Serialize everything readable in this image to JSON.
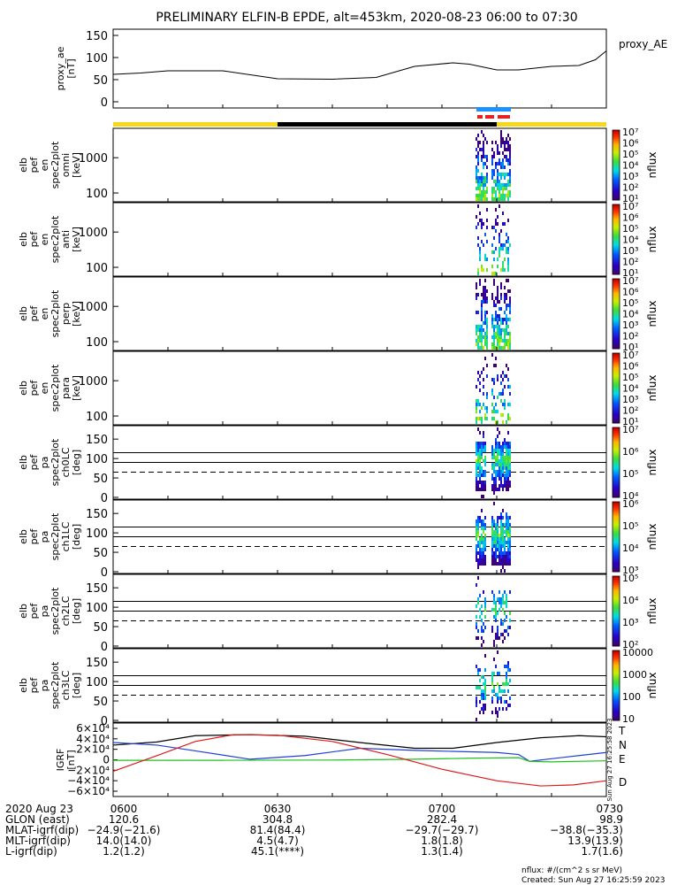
{
  "title": "PRELIMINARY ELFIN-B EPDE, alt=453km, 2020-08-23 06:00 to 07:30",
  "colors": {
    "bar_yellow": "#f8d81c",
    "bar_black": "#000000",
    "bar_blue": "#1e90ff",
    "bar_red": "#e82020",
    "trace_T": "#000000",
    "trace_N": "#1f3fd8",
    "trace_E": "#20c020",
    "trace_D": "#e01a1a"
  },
  "chart_data": {
    "type": "heatmap",
    "time_range": [
      "06:00",
      "07:30"
    ],
    "panels": [
      {
        "id": "proxy_ae",
        "type": "line",
        "ylabel_lines": [
          "proxy_ae",
          "[nT]"
        ],
        "right_label": "proxy_AE",
        "ylim": [
          0,
          150
        ],
        "yticks": [
          "150",
          "100",
          "50",
          "0"
        ],
        "x_minutes": [
          0,
          5,
          10,
          20,
          30,
          40,
          48,
          55,
          62,
          65,
          70,
          74,
          80,
          85,
          88,
          90
        ],
        "y": [
          62,
          65,
          70,
          70,
          52,
          51,
          55,
          80,
          88,
          85,
          72,
          72,
          80,
          82,
          95,
          115
        ]
      },
      {
        "id": "omni",
        "ylabel_lines": [
          "elb",
          "pef",
          "en",
          "spec2plot",
          "omni",
          "[keV]"
        ],
        "yticks": [
          "1000",
          "100"
        ],
        "cbar_label": "nflux",
        "cbar_ticks": [
          "10⁷",
          "10⁶",
          "10⁵",
          "10⁴",
          "10³",
          "10²",
          "10¹"
        ]
      },
      {
        "id": "anti",
        "ylabel_lines": [
          "elb",
          "pef",
          "en",
          "spec2plot",
          "anti",
          "[keV]"
        ],
        "yticks": [
          "1000",
          "100"
        ],
        "cbar_label": "nflux",
        "cbar_ticks": [
          "10⁷",
          "10⁶",
          "10⁵",
          "10⁴",
          "10³",
          "10²",
          "10¹"
        ]
      },
      {
        "id": "perp",
        "ylabel_lines": [
          "elb",
          "pef",
          "en",
          "spec2plot",
          "perp",
          "[keV]"
        ],
        "yticks": [
          "1000",
          "100"
        ],
        "cbar_label": "nflux",
        "cbar_ticks": [
          "10⁷",
          "10⁶",
          "10⁵",
          "10⁴",
          "10³",
          "10²",
          "10¹"
        ]
      },
      {
        "id": "para",
        "ylabel_lines": [
          "elb",
          "pef",
          "en",
          "spec2plot",
          "para",
          "[keV]"
        ],
        "yticks": [
          "1000",
          "100"
        ],
        "cbar_label": "nflux",
        "cbar_ticks": [
          "10⁷",
          "10⁶",
          "10⁵",
          "10⁴",
          "10³",
          "10²",
          "10¹"
        ]
      },
      {
        "id": "ch0LC",
        "ylabel_lines": [
          "elb",
          "pef",
          "pa",
          "spec2plot",
          "ch0LC",
          "[deg]"
        ],
        "yticks": [
          "150",
          "100",
          "50",
          "0"
        ],
        "ylim": [
          0,
          180
        ],
        "cbar_label": "nflux",
        "cbar_ticks": [
          "10⁷",
          "10⁶",
          "10⁵",
          "10⁴"
        ]
      },
      {
        "id": "ch1LC",
        "ylabel_lines": [
          "elb",
          "pef",
          "pa",
          "spec2plot",
          "ch1LC",
          "[deg]"
        ],
        "yticks": [
          "150",
          "100",
          "50",
          "0"
        ],
        "ylim": [
          0,
          180
        ],
        "cbar_label": "nflux",
        "cbar_ticks": [
          "10⁶",
          "10⁵",
          "10⁴",
          "10³"
        ]
      },
      {
        "id": "ch2LC",
        "ylabel_lines": [
          "elb",
          "pef",
          "pa",
          "spec2plot",
          "ch2LC",
          "[deg]"
        ],
        "yticks": [
          "150",
          "100",
          "50",
          "0"
        ],
        "ylim": [
          0,
          180
        ],
        "cbar_label": "nflux",
        "cbar_ticks": [
          "10⁵",
          "10⁴",
          "10³",
          "10²"
        ]
      },
      {
        "id": "ch3LC",
        "ylabel_lines": [
          "elb",
          "pef",
          "pa",
          "spec2plot",
          "ch3LC",
          "[deg]"
        ],
        "yticks": [
          "150",
          "100",
          "50",
          "0"
        ],
        "ylim": [
          0,
          180
        ],
        "cbar_label": "nflux",
        "cbar_ticks": [
          "10000",
          "1000",
          "100",
          "10"
        ]
      },
      {
        "id": "igrf",
        "type": "line",
        "ylabel_lines": [
          "IGRF",
          "[nT]"
        ],
        "ylim": [
          -60000,
          60000
        ],
        "yticks": [
          "6×10⁴",
          "4×10⁴",
          "2×10⁴",
          "0",
          "−2×10⁴",
          "−4×10⁴",
          "−6×10⁴"
        ],
        "side_text": "Sun Aug 27 16:25:58 2023",
        "series": [
          {
            "name": "T",
            "x_minutes": [
              0,
              8,
              15,
              25,
              35,
              45,
              55,
              62,
              70,
              78,
              85,
              90
            ],
            "y": [
              28000,
              34000,
              46000,
              48000,
              45000,
              33000,
              22000,
              22000,
              33000,
              42000,
              46000,
              44000
            ]
          },
          {
            "name": "N",
            "x_minutes": [
              0,
              8,
              15,
              25,
              35,
              45,
              55,
              62,
              70,
              74,
              76,
              80,
              85,
              90
            ],
            "y": [
              33000,
              28000,
              17000,
              1000,
              8000,
              22000,
              18000,
              16000,
              14000,
              10000,
              -3000,
              2000,
              8000,
              14000
            ]
          },
          {
            "name": "E",
            "x_minutes": [
              0,
              20,
              40,
              55,
              65,
              74,
              76,
              80,
              90
            ],
            "y": [
              -1000,
              -1000,
              -500,
              1000,
              3000,
              4000,
              -3000,
              -4000,
              -2000
            ]
          },
          {
            "name": "D",
            "x_minutes": [
              0,
              8,
              15,
              22,
              30,
              40,
              50,
              60,
              70,
              78,
              84,
              90
            ],
            "y": [
              -22000,
              8000,
              35000,
              48000,
              47000,
              35000,
              10000,
              -18000,
              -40000,
              -50000,
              -48000,
              -40000
            ]
          }
        ]
      }
    ],
    "x_axis_table": {
      "rows": [
        {
          "label": "2020 Aug 23",
          "values": [
            "0600",
            "0630",
            "0700",
            "0730"
          ]
        },
        {
          "label": "GLON (east)",
          "values": [
            "120.6",
            "304.8",
            "282.4",
            "98.9"
          ]
        },
        {
          "label": "MLAT-igrf(dip)",
          "values": [
            "−24.9(−21.6)",
            "81.4(84.4)",
            "−29.7(−29.7)",
            "−38.8(−35.3)"
          ]
        },
        {
          "label": "MLT-igrf(dip)",
          "values": [
            "14.0(14.0)",
            "4.5(4.7)",
            "1.8(1.8)",
            "13.9(13.9)"
          ]
        },
        {
          "label": "L-igrf(dip)",
          "values": [
            "1.2(1.2)",
            "45.1(****)",
            "1.3(1.4)",
            "1.7(1.6)"
          ]
        }
      ]
    },
    "footer": [
      "nflux: #/(cm^2 s sr MeV)",
      "Created: Sun Aug 27 16:25:59 2023"
    ]
  }
}
